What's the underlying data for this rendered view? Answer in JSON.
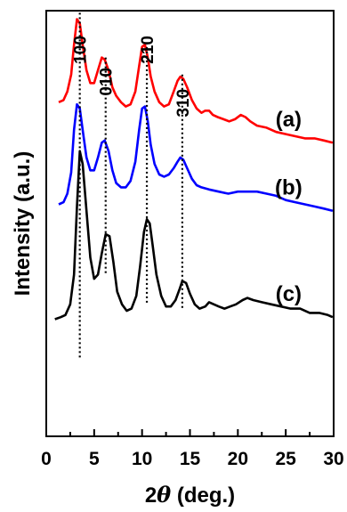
{
  "chart_data": {
    "type": "line",
    "xlabel_prefix": "2",
    "xlabel_symbol": "θ",
    "xlabel_suffix": " (deg.)",
    "ylabel": "Intensity (a.u.)",
    "xlim": [
      0,
      30
    ],
    "ylim": [
      0,
      1
    ],
    "xticks": [
      0,
      5,
      10,
      15,
      20,
      25,
      30
    ],
    "grid": false,
    "peaks": [
      {
        "label": "100",
        "x": 3.5
      },
      {
        "label": "010",
        "x": 6.2
      },
      {
        "label": "210",
        "x": 10.5
      },
      {
        "label": "310",
        "x": 14.2
      }
    ],
    "series": [
      {
        "name": "(a)",
        "color": "#ff0000",
        "x": [
          1.3,
          1.8,
          2.2,
          2.6,
          2.9,
          3.2,
          3.5,
          3.8,
          4.2,
          4.6,
          5.0,
          5.4,
          5.8,
          6.1,
          6.5,
          6.9,
          7.3,
          7.8,
          8.3,
          8.8,
          9.3,
          9.7,
          10.0,
          10.3,
          10.6,
          10.9,
          11.3,
          11.8,
          12.3,
          12.8,
          13.3,
          13.7,
          14.0,
          14.3,
          14.7,
          15.2,
          15.7,
          16.2,
          16.6,
          17.0,
          17.4,
          17.9,
          18.5,
          19.1,
          19.7,
          20.3,
          20.8,
          21.3,
          22.0,
          23.0,
          24.0,
          25.0,
          26.0,
          27.0,
          28.0,
          29.0,
          29.9
        ],
        "y": [
          0.785,
          0.79,
          0.81,
          0.85,
          0.92,
          0.98,
          0.97,
          0.92,
          0.86,
          0.83,
          0.83,
          0.86,
          0.89,
          0.885,
          0.86,
          0.82,
          0.8,
          0.785,
          0.775,
          0.78,
          0.81,
          0.87,
          0.915,
          0.92,
          0.89,
          0.845,
          0.81,
          0.785,
          0.775,
          0.78,
          0.81,
          0.835,
          0.845,
          0.84,
          0.82,
          0.79,
          0.77,
          0.76,
          0.765,
          0.765,
          0.755,
          0.75,
          0.745,
          0.74,
          0.745,
          0.755,
          0.75,
          0.74,
          0.73,
          0.725,
          0.715,
          0.71,
          0.705,
          0.7,
          0.7,
          0.695,
          0.69
        ]
      },
      {
        "name": "(b)",
        "color": "#0000ff",
        "x": [
          1.3,
          1.8,
          2.2,
          2.6,
          2.9,
          3.2,
          3.5,
          3.8,
          4.2,
          4.6,
          5.0,
          5.4,
          5.8,
          6.1,
          6.5,
          6.9,
          7.3,
          7.8,
          8.3,
          8.8,
          9.3,
          9.7,
          10.0,
          10.3,
          10.6,
          10.9,
          11.3,
          11.8,
          12.3,
          12.8,
          13.3,
          13.7,
          14.0,
          14.3,
          14.7,
          15.2,
          15.7,
          16.2,
          17.0,
          18.0,
          19.0,
          20.0,
          21.0,
          22.0,
          23.0,
          24.0,
          25.0,
          26.0,
          27.0,
          28.0,
          29.0,
          29.9
        ],
        "y": [
          0.545,
          0.55,
          0.57,
          0.62,
          0.72,
          0.78,
          0.77,
          0.72,
          0.655,
          0.625,
          0.625,
          0.655,
          0.69,
          0.695,
          0.67,
          0.625,
          0.595,
          0.585,
          0.585,
          0.6,
          0.645,
          0.72,
          0.77,
          0.775,
          0.74,
          0.685,
          0.64,
          0.615,
          0.61,
          0.615,
          0.63,
          0.645,
          0.655,
          0.65,
          0.63,
          0.605,
          0.59,
          0.585,
          0.58,
          0.575,
          0.57,
          0.575,
          0.575,
          0.575,
          0.57,
          0.565,
          0.555,
          0.55,
          0.545,
          0.54,
          0.535,
          0.53
        ]
      },
      {
        "name": "(c)",
        "color": "#000000",
        "x": [
          0.9,
          1.5,
          2.0,
          2.5,
          2.9,
          3.2,
          3.5,
          3.8,
          4.2,
          4.6,
          5.0,
          5.4,
          5.8,
          6.2,
          6.6,
          7.0,
          7.4,
          7.9,
          8.4,
          8.9,
          9.4,
          9.8,
          10.2,
          10.5,
          10.8,
          11.1,
          11.5,
          12.0,
          12.5,
          13.0,
          13.5,
          13.9,
          14.2,
          14.6,
          15.0,
          15.5,
          16.0,
          16.6,
          17.0,
          17.5,
          18.0,
          18.6,
          19.2,
          19.8,
          20.5,
          21.0,
          21.6,
          22.5,
          23.5,
          24.5,
          25.5,
          26.5,
          27.5,
          28.5,
          29.4,
          29.9
        ],
        "y": [
          0.275,
          0.28,
          0.285,
          0.31,
          0.38,
          0.54,
          0.67,
          0.64,
          0.53,
          0.42,
          0.37,
          0.38,
          0.43,
          0.475,
          0.47,
          0.41,
          0.34,
          0.31,
          0.295,
          0.3,
          0.33,
          0.4,
          0.48,
          0.51,
          0.5,
          0.45,
          0.38,
          0.33,
          0.305,
          0.305,
          0.32,
          0.345,
          0.365,
          0.36,
          0.335,
          0.31,
          0.3,
          0.305,
          0.315,
          0.31,
          0.305,
          0.3,
          0.305,
          0.31,
          0.32,
          0.325,
          0.32,
          0.315,
          0.31,
          0.305,
          0.3,
          0.3,
          0.29,
          0.29,
          0.285,
          0.28
        ]
      }
    ]
  }
}
